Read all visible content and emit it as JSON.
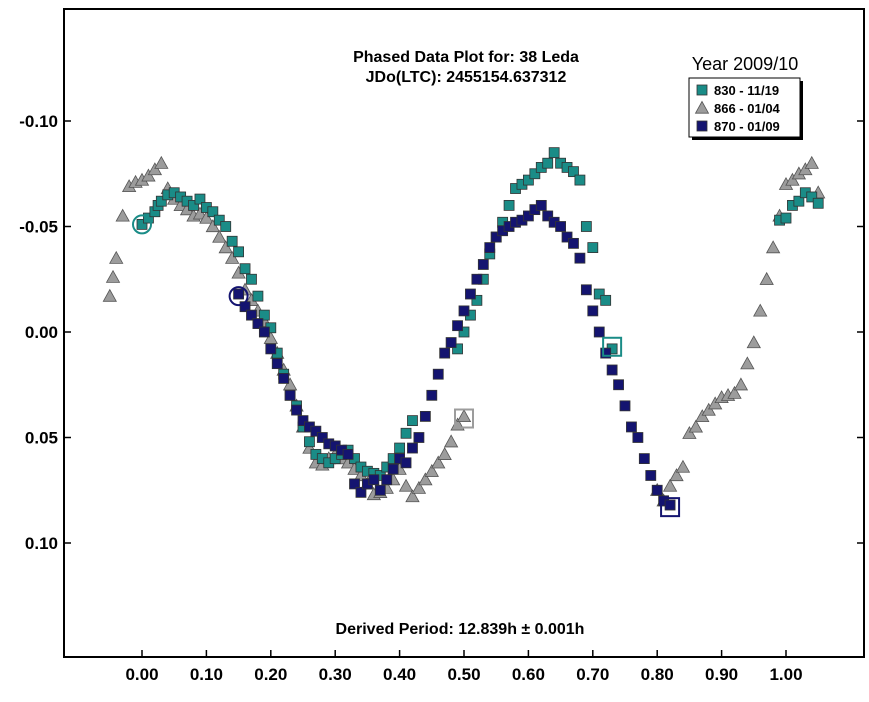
{
  "chart_data": {
    "type": "scatter",
    "title": "Phased Data Plot for: 38 Leda",
    "subtitle": "JDo(LTC): 2455154.637312",
    "footer_label": "Derived Period: 12.839h  ± 0.001h",
    "legend_title": "Year 2009/10",
    "legend_position": "top-right",
    "grid": false,
    "y_inverted": true,
    "xlim": [
      -0.12,
      1.12
    ],
    "ylim": [
      -0.155,
      0.155
    ],
    "x_ticks": [
      0.0,
      0.1,
      0.2,
      0.3,
      0.4,
      0.5,
      0.6,
      0.7,
      0.8,
      0.9,
      1.0
    ],
    "x_tick_labels": [
      "0.00",
      "0.10",
      "0.20",
      "0.30",
      "0.40",
      "0.50",
      "0.60",
      "0.70",
      "0.80",
      "0.90",
      "1.00"
    ],
    "y_ticks": [
      -0.1,
      -0.05,
      0.0,
      0.05,
      0.1
    ],
    "y_tick_labels": [
      "-0.10",
      "-0.05",
      "0.00",
      "0.05",
      "0.10"
    ],
    "series": [
      {
        "name": "830 - 11/19",
        "marker": "square",
        "color": "#1a8c87",
        "points": [
          [
            0.0,
            -0.051
          ],
          [
            0.01,
            -0.054
          ],
          [
            0.02,
            -0.057
          ],
          [
            0.025,
            -0.06
          ],
          [
            0.03,
            -0.062
          ],
          [
            0.04,
            -0.065
          ],
          [
            0.05,
            -0.066
          ],
          [
            0.06,
            -0.064
          ],
          [
            0.07,
            -0.062
          ],
          [
            0.08,
            -0.06
          ],
          [
            0.09,
            -0.063
          ],
          [
            0.1,
            -0.059
          ],
          [
            0.11,
            -0.057
          ],
          [
            0.12,
            -0.053
          ],
          [
            0.13,
            -0.05
          ],
          [
            0.14,
            -0.043
          ],
          [
            0.15,
            -0.038
          ],
          [
            0.16,
            -0.03
          ],
          [
            0.17,
            -0.025
          ],
          [
            0.18,
            -0.017
          ],
          [
            0.19,
            -0.008
          ],
          [
            0.2,
            -0.002
          ],
          [
            0.21,
            0.01
          ],
          [
            0.22,
            0.02
          ],
          [
            0.23,
            0.03
          ],
          [
            0.24,
            0.035
          ],
          [
            0.25,
            0.045
          ],
          [
            0.26,
            0.052
          ],
          [
            0.27,
            0.058
          ],
          [
            0.28,
            0.06
          ],
          [
            0.29,
            0.062
          ],
          [
            0.3,
            0.06
          ],
          [
            0.31,
            0.058
          ],
          [
            0.32,
            0.056
          ],
          [
            0.33,
            0.06
          ],
          [
            0.34,
            0.064
          ],
          [
            0.35,
            0.066
          ],
          [
            0.36,
            0.067
          ],
          [
            0.37,
            0.068
          ],
          [
            0.38,
            0.064
          ],
          [
            0.39,
            0.06
          ],
          [
            0.4,
            0.055
          ],
          [
            0.41,
            0.048
          ],
          [
            0.42,
            0.042
          ],
          [
            0.49,
            0.008
          ],
          [
            0.5,
            0.0
          ],
          [
            0.51,
            -0.008
          ],
          [
            0.52,
            -0.015
          ],
          [
            0.53,
            -0.025
          ],
          [
            0.54,
            -0.037
          ],
          [
            0.55,
            -0.045
          ],
          [
            0.56,
            -0.052
          ],
          [
            0.57,
            -0.06
          ],
          [
            0.58,
            -0.068
          ],
          [
            0.59,
            -0.07
          ],
          [
            0.6,
            -0.072
          ],
          [
            0.61,
            -0.075
          ],
          [
            0.62,
            -0.078
          ],
          [
            0.63,
            -0.08
          ],
          [
            0.64,
            -0.085
          ],
          [
            0.65,
            -0.08
          ],
          [
            0.66,
            -0.078
          ],
          [
            0.67,
            -0.076
          ],
          [
            0.68,
            -0.072
          ],
          [
            0.69,
            -0.05
          ],
          [
            0.7,
            -0.04
          ],
          [
            0.71,
            -0.018
          ],
          [
            0.72,
            -0.015
          ],
          [
            0.73,
            0.008
          ],
          [
            0.99,
            -0.053
          ],
          [
            1.0,
            -0.054
          ],
          [
            1.01,
            -0.06
          ],
          [
            1.02,
            -0.062
          ],
          [
            1.03,
            -0.066
          ],
          [
            1.04,
            -0.064
          ],
          [
            1.05,
            -0.061
          ]
        ]
      },
      {
        "name": "866 - 01/04",
        "marker": "triangle",
        "color": "#9c9c9c",
        "points": [
          [
            -0.05,
            -0.017
          ],
          [
            -0.045,
            -0.026
          ],
          [
            -0.04,
            -0.035
          ],
          [
            -0.03,
            -0.055
          ],
          [
            -0.02,
            -0.069
          ],
          [
            -0.01,
            -0.071
          ],
          [
            0.0,
            -0.072
          ],
          [
            0.01,
            -0.074
          ],
          [
            0.02,
            -0.077
          ],
          [
            0.03,
            -0.08
          ],
          [
            0.04,
            -0.068
          ],
          [
            0.05,
            -0.063
          ],
          [
            0.06,
            -0.06
          ],
          [
            0.07,
            -0.058
          ],
          [
            0.08,
            -0.055
          ],
          [
            0.09,
            -0.056
          ],
          [
            0.1,
            -0.054
          ],
          [
            0.11,
            -0.05
          ],
          [
            0.12,
            -0.045
          ],
          [
            0.13,
            -0.04
          ],
          [
            0.14,
            -0.035
          ],
          [
            0.15,
            -0.028
          ],
          [
            0.16,
            -0.02
          ],
          [
            0.17,
            -0.015
          ],
          [
            0.18,
            -0.01
          ],
          [
            0.19,
            -0.005
          ],
          [
            0.2,
            0.003
          ],
          [
            0.21,
            0.01
          ],
          [
            0.22,
            0.018
          ],
          [
            0.23,
            0.025
          ],
          [
            0.24,
            0.035
          ],
          [
            0.25,
            0.045
          ],
          [
            0.26,
            0.055
          ],
          [
            0.27,
            0.062
          ],
          [
            0.28,
            0.063
          ],
          [
            0.29,
            0.06
          ],
          [
            0.3,
            0.058
          ],
          [
            0.31,
            0.06
          ],
          [
            0.32,
            0.062
          ],
          [
            0.33,
            0.065
          ],
          [
            0.34,
            0.068
          ],
          [
            0.35,
            0.072
          ],
          [
            0.36,
            0.077
          ],
          [
            0.37,
            0.076
          ],
          [
            0.38,
            0.074
          ],
          [
            0.39,
            0.07
          ],
          [
            0.4,
            0.065
          ],
          [
            0.41,
            0.073
          ],
          [
            0.42,
            0.078
          ],
          [
            0.43,
            0.074
          ],
          [
            0.44,
            0.07
          ],
          [
            0.45,
            0.066
          ],
          [
            0.46,
            0.062
          ],
          [
            0.47,
            0.058
          ],
          [
            0.48,
            0.052
          ],
          [
            0.49,
            0.044
          ],
          [
            0.5,
            0.04
          ],
          [
            0.8,
            0.075
          ],
          [
            0.81,
            0.08
          ],
          [
            0.82,
            0.073
          ],
          [
            0.83,
            0.068
          ],
          [
            0.84,
            0.064
          ],
          [
            0.85,
            0.048
          ],
          [
            0.86,
            0.045
          ],
          [
            0.87,
            0.04
          ],
          [
            0.88,
            0.037
          ],
          [
            0.89,
            0.034
          ],
          [
            0.9,
            0.031
          ],
          [
            0.91,
            0.03
          ],
          [
            0.92,
            0.029
          ],
          [
            0.93,
            0.025
          ],
          [
            0.94,
            0.015
          ],
          [
            0.95,
            0.005
          ],
          [
            0.96,
            -0.01
          ],
          [
            0.97,
            -0.025
          ],
          [
            0.98,
            -0.04
          ],
          [
            0.99,
            -0.055
          ],
          [
            1.0,
            -0.07
          ],
          [
            1.01,
            -0.072
          ],
          [
            1.02,
            -0.075
          ],
          [
            1.03,
            -0.077
          ],
          [
            1.04,
            -0.08
          ],
          [
            1.05,
            -0.066
          ]
        ]
      },
      {
        "name": "870 - 01/09",
        "marker": "square",
        "color": "#141470",
        "points": [
          [
            0.15,
            -0.018
          ],
          [
            0.16,
            -0.012
          ],
          [
            0.17,
            -0.008
          ],
          [
            0.18,
            -0.004
          ],
          [
            0.19,
            0.0
          ],
          [
            0.2,
            0.008
          ],
          [
            0.21,
            0.015
          ],
          [
            0.22,
            0.022
          ],
          [
            0.23,
            0.03
          ],
          [
            0.24,
            0.037
          ],
          [
            0.25,
            0.042
          ],
          [
            0.26,
            0.045
          ],
          [
            0.27,
            0.047
          ],
          [
            0.28,
            0.05
          ],
          [
            0.29,
            0.053
          ],
          [
            0.3,
            0.054
          ],
          [
            0.31,
            0.056
          ],
          [
            0.32,
            0.058
          ],
          [
            0.33,
            0.072
          ],
          [
            0.34,
            0.076
          ],
          [
            0.35,
            0.072
          ],
          [
            0.36,
            0.07
          ],
          [
            0.37,
            0.075
          ],
          [
            0.38,
            0.07
          ],
          [
            0.39,
            0.065
          ],
          [
            0.4,
            0.06
          ],
          [
            0.41,
            0.062
          ],
          [
            0.42,
            0.055
          ],
          [
            0.43,
            0.05
          ],
          [
            0.44,
            0.04
          ],
          [
            0.45,
            0.03
          ],
          [
            0.46,
            0.02
          ],
          [
            0.47,
            0.01
          ],
          [
            0.48,
            0.005
          ],
          [
            0.49,
            -0.003
          ],
          [
            0.5,
            -0.01
          ],
          [
            0.51,
            -0.018
          ],
          [
            0.52,
            -0.025
          ],
          [
            0.53,
            -0.032
          ],
          [
            0.54,
            -0.04
          ],
          [
            0.55,
            -0.045
          ],
          [
            0.56,
            -0.048
          ],
          [
            0.57,
            -0.05
          ],
          [
            0.58,
            -0.052
          ],
          [
            0.59,
            -0.053
          ],
          [
            0.6,
            -0.055
          ],
          [
            0.61,
            -0.058
          ],
          [
            0.62,
            -0.06
          ],
          [
            0.63,
            -0.055
          ],
          [
            0.64,
            -0.052
          ],
          [
            0.65,
            -0.05
          ],
          [
            0.66,
            -0.045
          ],
          [
            0.67,
            -0.042
          ],
          [
            0.68,
            -0.035
          ],
          [
            0.69,
            -0.02
          ],
          [
            0.7,
            -0.01
          ],
          [
            0.71,
            0.0
          ],
          [
            0.72,
            0.01
          ],
          [
            0.73,
            0.018
          ],
          [
            0.74,
            0.025
          ],
          [
            0.75,
            0.035
          ],
          [
            0.76,
            0.045
          ],
          [
            0.77,
            0.05
          ],
          [
            0.78,
            0.06
          ],
          [
            0.79,
            0.068
          ],
          [
            0.8,
            0.075
          ],
          [
            0.81,
            0.08
          ],
          [
            0.82,
            0.082
          ]
        ]
      }
    ],
    "highlighted_points": [
      {
        "series": "830 - 11/19",
        "marker": "circle",
        "color": "#1a8c87",
        "x": 0.0,
        "y": -0.051
      },
      {
        "series": "870 - 01/09",
        "marker": "circle",
        "color": "#141470",
        "x": 0.15,
        "y": -0.017
      },
      {
        "series": "866 - 01/04",
        "marker": "square",
        "color": "#9c9c9c",
        "x": 0.5,
        "y": 0.041
      },
      {
        "series": "830 - 11/19",
        "marker": "square",
        "color": "#1a8c87",
        "x": 0.73,
        "y": 0.007
      },
      {
        "series": "870 - 01/09",
        "marker": "square",
        "color": "#141470",
        "x": 0.82,
        "y": 0.083
      }
    ]
  }
}
